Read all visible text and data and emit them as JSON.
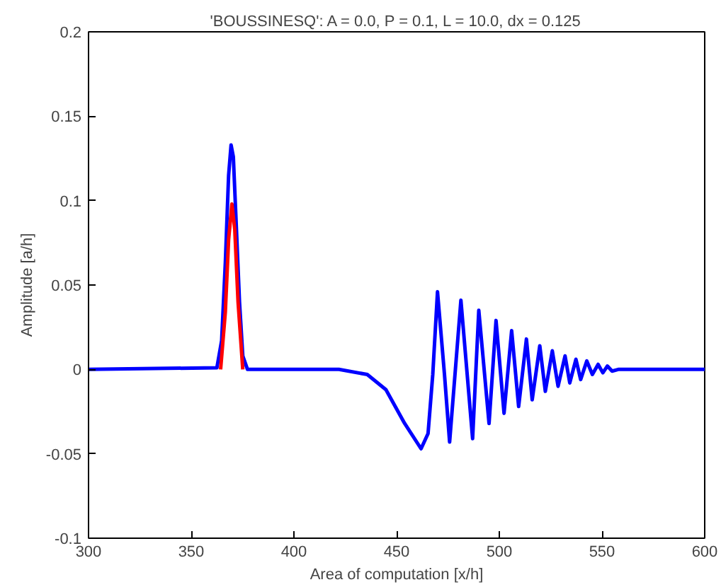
{
  "chart_data": {
    "type": "line",
    "title": "'BOUSSINESQ': A = 0.0, P = 0.1, L = 10.0, dx = 0.125",
    "xlabel": "Area of computation [x/h]",
    "ylabel": "Amplitude [a/h]",
    "xlim": [
      300,
      600
    ],
    "ylim": [
      -0.1,
      0.2
    ],
    "xticks": [
      300,
      350,
      400,
      450,
      500,
      550,
      600
    ],
    "yticks": [
      -0.1,
      -0.05,
      0,
      0.05,
      0.1,
      0.15,
      0.2
    ],
    "grid": false,
    "line_style": "solid",
    "series": [
      {
        "color": "#0000ff",
        "x": [
          300,
          362.5,
          364.8,
          366.6,
          368.2,
          369.4,
          370.5,
          371.7,
          373.5,
          375.1,
          377.4,
          421.9,
          435.7,
          444.8,
          453.9,
          461.9,
          465.3,
          467.6,
          469.9,
          473.3,
          475.8,
          481.3,
          487.0,
          490.0,
          495.0,
          498.4,
          502.3,
          506.0,
          509.4,
          513.2,
          516.0,
          519.7,
          522.4,
          525.8,
          528.6,
          532.0,
          534.3,
          537.3,
          539.6,
          542.6,
          545.3,
          548.1,
          550.4,
          552.6,
          554.9,
          557.9,
          565.9,
          600
        ],
        "values": [
          0,
          0.001,
          0.017,
          0.063,
          0.115,
          0.133,
          0.126,
          0.092,
          0.04,
          0.008,
          0,
          0,
          -0.003,
          -0.012,
          -0.032,
          -0.047,
          -0.038,
          -0.003,
          0.046,
          -0.003,
          -0.043,
          0.041,
          -0.041,
          0.035,
          -0.032,
          0.029,
          -0.026,
          0.023,
          -0.022,
          0.018,
          -0.018,
          0.014,
          -0.013,
          0.011,
          -0.01,
          0.008,
          -0.008,
          0.006,
          -0.006,
          0.005,
          -0.003,
          0.003,
          -0.002,
          0.002,
          -0.001,
          0,
          0,
          0
        ]
      },
      {
        "color": "#ff0000",
        "x": [
          364.3,
          366.6,
          368.2,
          369.8,
          371.2,
          372.8,
          375.1
        ],
        "values": [
          0,
          0.034,
          0.077,
          0.098,
          0.083,
          0.04,
          0
        ]
      }
    ]
  }
}
